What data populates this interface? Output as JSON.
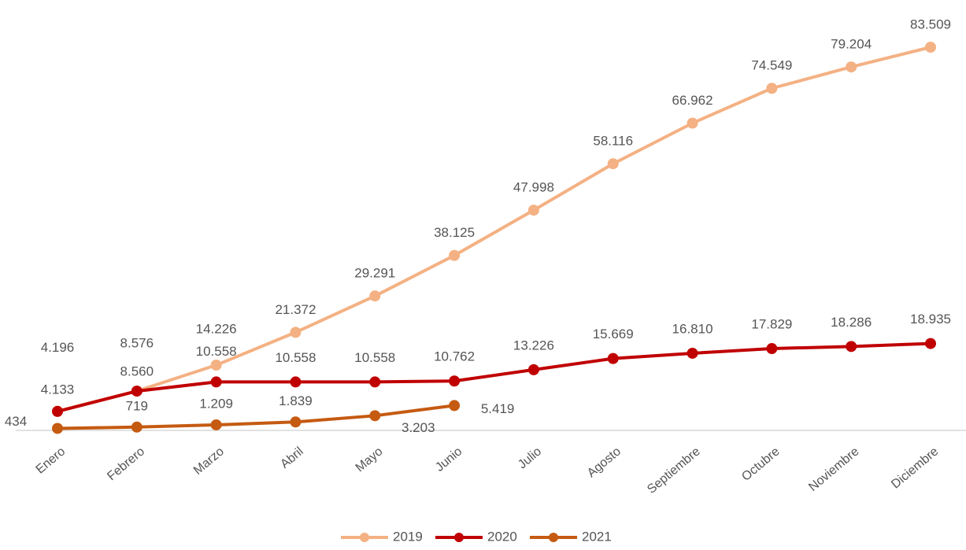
{
  "chart_data": {
    "type": "line",
    "categories": [
      "Enero",
      "Febrero",
      "Marzo",
      "Abril",
      "Mayo",
      "Junio",
      "Julio",
      "Agosto",
      "Septiembre",
      "Octubre",
      "Noviembre",
      "Diciembre"
    ],
    "series": [
      {
        "name": "2019",
        "color": "#f4b183",
        "values": [
          4196,
          8576,
          14226,
          21372,
          29291,
          38125,
          47998,
          58116,
          66962,
          74549,
          79204,
          83509
        ],
        "value_labels": [
          "4.196",
          "8.576",
          "14.226",
          "21.372",
          "29.291",
          "38.125",
          "47.998",
          "58.116",
          "66.962",
          "74.549",
          "79.204",
          "83.509"
        ]
      },
      {
        "name": "2020",
        "color": "#c00000",
        "values": [
          4133,
          8560,
          10558,
          10558,
          10558,
          10762,
          13226,
          15669,
          16810,
          17829,
          18286,
          18935
        ],
        "value_labels": [
          "4.133",
          "8.560",
          "10.558",
          "10.558",
          "10.558",
          "10.762",
          "13.226",
          "15.669",
          "16.810",
          "17.829",
          "18.286",
          "18.935"
        ]
      },
      {
        "name": "2021",
        "color": "#c55a11",
        "values": [
          434,
          719,
          1209,
          1839,
          3203,
          5419,
          null,
          null,
          null,
          null,
          null,
          null
        ],
        "value_labels": [
          "434",
          "719",
          "1.209",
          "1.839",
          "3.203",
          "5.419",
          null,
          null,
          null,
          null,
          null,
          null
        ]
      }
    ],
    "legend": "bottom"
  }
}
